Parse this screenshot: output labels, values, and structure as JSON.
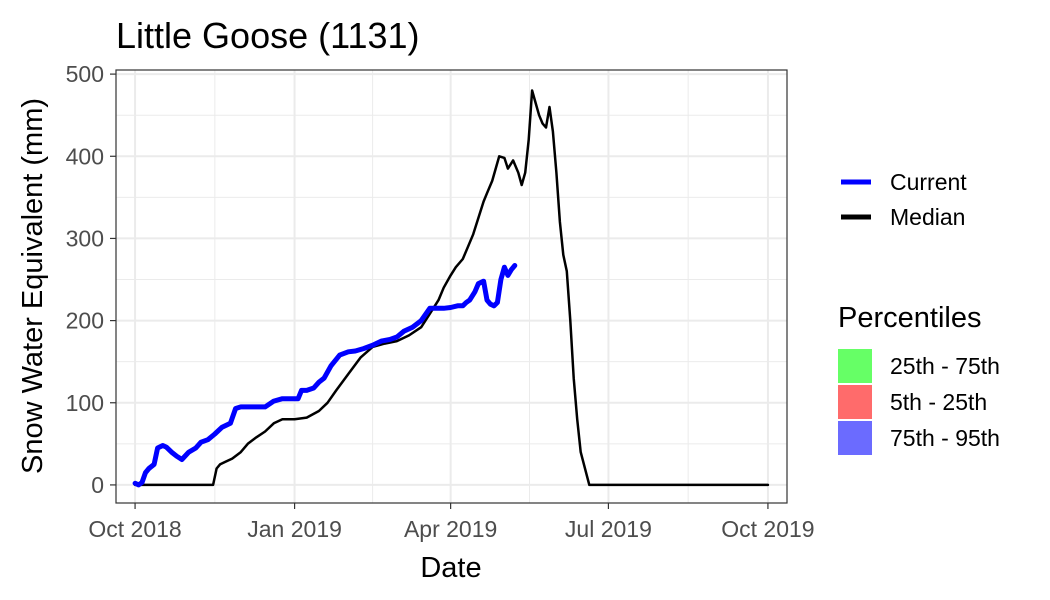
{
  "chart_data": {
    "type": "line",
    "title": "Little Goose (1131)",
    "xlabel": "Date",
    "ylabel": "Snow Water Equivalent (mm)",
    "x_ticks": [
      "Oct 2018",
      "Jan 2019",
      "Apr 2019",
      "Jul 2019",
      "Oct 2019"
    ],
    "x_tick_dates": [
      "2018-10-01",
      "2019-01-01",
      "2019-04-01",
      "2019-07-01",
      "2019-10-01"
    ],
    "xlim": [
      "2018-09-20",
      "2019-10-12"
    ],
    "y_ticks": [
      0,
      100,
      200,
      300,
      400,
      500
    ],
    "ylim": [
      -22,
      505
    ],
    "grid": true,
    "legend_position": "right",
    "colors": {
      "current": "#0000ff",
      "median": "#000000",
      "p25_75": "#66ff66",
      "p5_25": "#ff6b6b",
      "p75_95": "#6b6bff"
    },
    "series": [
      {
        "name": "Current",
        "x": [
          "2018-10-01",
          "2018-10-03",
          "2018-10-05",
          "2018-10-07",
          "2018-10-09",
          "2018-10-12",
          "2018-10-14",
          "2018-10-17",
          "2018-10-19",
          "2018-10-22",
          "2018-10-25",
          "2018-10-28",
          "2018-11-01",
          "2018-11-05",
          "2018-11-08",
          "2018-11-12",
          "2018-11-16",
          "2018-11-20",
          "2018-11-25",
          "2018-11-28",
          "2018-12-01",
          "2018-12-05",
          "2018-12-10",
          "2018-12-15",
          "2018-12-20",
          "2018-12-25",
          "2018-12-30",
          "2019-01-03",
          "2019-01-05",
          "2019-01-08",
          "2019-01-12",
          "2019-01-15",
          "2019-01-18",
          "2019-01-22",
          "2019-01-27",
          "2019-02-01",
          "2019-02-05",
          "2019-02-10",
          "2019-02-15",
          "2019-02-20",
          "2019-02-25",
          "2019-03-01",
          "2019-03-05",
          "2019-03-10",
          "2019-03-15",
          "2019-03-20",
          "2019-03-25",
          "2019-03-28",
          "2019-04-01",
          "2019-04-05",
          "2019-04-08",
          "2019-04-10",
          "2019-04-12",
          "2019-04-15",
          "2019-04-17",
          "2019-04-20",
          "2019-04-22",
          "2019-04-24",
          "2019-04-26",
          "2019-04-28",
          "2019-04-30",
          "2019-05-02",
          "2019-05-04",
          "2019-05-06",
          "2019-05-08"
        ],
        "values": [
          2,
          0,
          3,
          15,
          20,
          25,
          45,
          48,
          46,
          40,
          35,
          31,
          40,
          45,
          52,
          55,
          62,
          70,
          75,
          93,
          95,
          95,
          95,
          95,
          102,
          105,
          105,
          105,
          115,
          115,
          118,
          125,
          130,
          145,
          158,
          162,
          163,
          166,
          170,
          175,
          177,
          180,
          187,
          192,
          200,
          215,
          215,
          215,
          216,
          218,
          218,
          222,
          225,
          235,
          245,
          248,
          225,
          220,
          218,
          222,
          250,
          265,
          255,
          262,
          267
        ]
      },
      {
        "name": "Median",
        "x": [
          "2018-10-01",
          "2018-10-15",
          "2018-11-01",
          "2018-11-15",
          "2018-11-17",
          "2018-11-19",
          "2018-11-22",
          "2018-11-26",
          "2018-12-01",
          "2018-12-05",
          "2018-12-10",
          "2018-12-15",
          "2018-12-20",
          "2018-12-25",
          "2019-01-01",
          "2019-01-08",
          "2019-01-15",
          "2019-01-20",
          "2019-01-25",
          "2019-02-01",
          "2019-02-08",
          "2019-02-15",
          "2019-02-22",
          "2019-03-01",
          "2019-03-08",
          "2019-03-15",
          "2019-03-22",
          "2019-03-25",
          "2019-03-28",
          "2019-04-01",
          "2019-04-04",
          "2019-04-08",
          "2019-04-11",
          "2019-04-14",
          "2019-04-17",
          "2019-04-20",
          "2019-04-22",
          "2019-04-25",
          "2019-04-27",
          "2019-04-29",
          "2019-05-02",
          "2019-05-04",
          "2019-05-07",
          "2019-05-10",
          "2019-05-12",
          "2019-05-14",
          "2019-05-16",
          "2019-05-18",
          "2019-05-20",
          "2019-05-22",
          "2019-05-24",
          "2019-05-26",
          "2019-05-28",
          "2019-05-30",
          "2019-06-01",
          "2019-06-03",
          "2019-06-05",
          "2019-06-07",
          "2019-06-09",
          "2019-06-11",
          "2019-06-13",
          "2019-06-15",
          "2019-06-20",
          "2019-07-01",
          "2019-08-01",
          "2019-09-01",
          "2019-10-01"
        ],
        "values": [
          0,
          0,
          0,
          0,
          20,
          25,
          28,
          32,
          40,
          50,
          58,
          65,
          75,
          80,
          80,
          82,
          90,
          100,
          115,
          135,
          155,
          168,
          172,
          175,
          182,
          192,
          215,
          225,
          240,
          255,
          265,
          275,
          290,
          305,
          325,
          345,
          355,
          370,
          385,
          400,
          398,
          385,
          395,
          380,
          365,
          380,
          420,
          480,
          465,
          450,
          440,
          435,
          460,
          430,
          380,
          320,
          280,
          260,
          200,
          130,
          80,
          40,
          0,
          0,
          0,
          0,
          0
        ]
      }
    ],
    "legend": {
      "lines": [
        {
          "label": "Current",
          "color": "#0000ff"
        },
        {
          "label": "Median",
          "color": "#000000"
        }
      ],
      "percentiles_title": "Percentiles",
      "percentiles": [
        {
          "label": "25th - 75th",
          "color": "#66ff66"
        },
        {
          "label": "5th - 25th",
          "color": "#ff6b6b"
        },
        {
          "label": "75th - 95th",
          "color": "#6b6bff"
        }
      ]
    }
  }
}
